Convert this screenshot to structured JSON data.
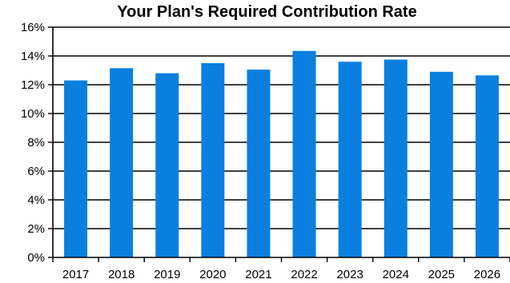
{
  "chart_data": {
    "type": "bar",
    "title": "Your Plan's Required Contribution Rate",
    "xlabel": "",
    "ylabel": "",
    "categories": [
      "2017",
      "2018",
      "2019",
      "2020",
      "2021",
      "2022",
      "2023",
      "2024",
      "2025",
      "2026"
    ],
    "values": [
      12.3,
      13.15,
      12.8,
      13.5,
      13.05,
      14.35,
      13.6,
      13.75,
      12.9,
      12.65
    ],
    "value_unit": "%",
    "ylim": [
      0,
      16
    ],
    "yticks": [
      "0%",
      "2%",
      "4%",
      "6%",
      "8%",
      "10%",
      "12%",
      "14%",
      "16%"
    ],
    "grid": true,
    "legend": "none",
    "bar_color": "#0A7FE0"
  }
}
